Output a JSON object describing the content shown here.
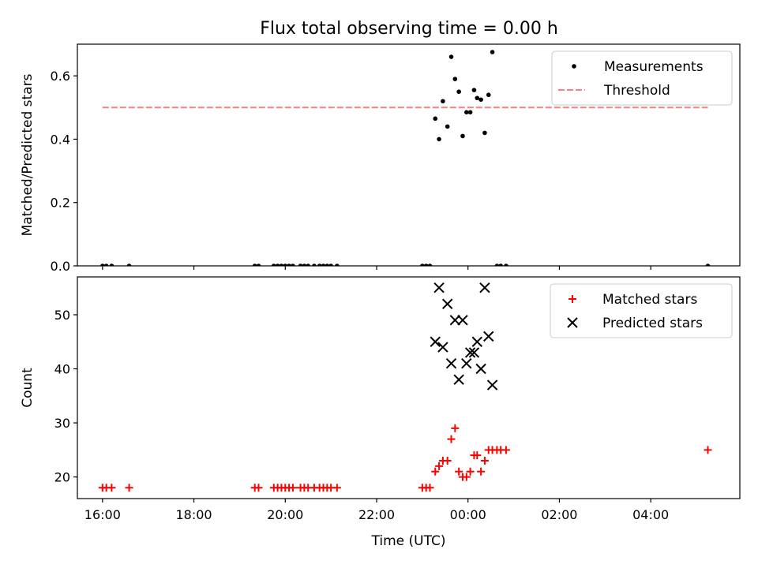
{
  "figure": {
    "title": "Flux total observing time = 0.00 h"
  },
  "chart_data": [
    {
      "type": "scatter",
      "panel": "top",
      "ylabel": "Matched/Predicted stars",
      "xlabel": "",
      "x_unit": "hours (UTC, continuing past midnight)",
      "xlim": [
        15.45,
        5.95
      ],
      "ylim": [
        0,
        0.7
      ],
      "yticks": [
        0.0,
        0.2,
        0.4,
        0.6
      ],
      "ytick_labels": [
        "0.0",
        "0.2",
        "0.4",
        "0.6"
      ],
      "legend": [
        "Measurements",
        "Threshold"
      ],
      "legend_position": "upper right",
      "threshold": {
        "name": "Threshold",
        "value": 0.5,
        "x_start": "16:00",
        "x_end": "05:15",
        "color": "#ff7f7f",
        "style": "dashed"
      },
      "series": [
        {
          "name": "Measurements",
          "marker": "dot",
          "color": "#000000",
          "points": [
            [
              "16:00",
              0
            ],
            [
              "16:05",
              0
            ],
            [
              "16:12",
              0
            ],
            [
              "16:35",
              0
            ],
            [
              "19:20",
              0
            ],
            [
              "19:25",
              0
            ],
            [
              "19:45",
              0
            ],
            [
              "19:50",
              0
            ],
            [
              "19:55",
              0
            ],
            [
              "20:00",
              0
            ],
            [
              "20:05",
              0
            ],
            [
              "20:10",
              0
            ],
            [
              "20:20",
              0
            ],
            [
              "20:25",
              0
            ],
            [
              "20:30",
              0
            ],
            [
              "20:38",
              0
            ],
            [
              "20:45",
              0
            ],
            [
              "20:50",
              0
            ],
            [
              "20:55",
              0
            ],
            [
              "21:00",
              0
            ],
            [
              "21:08",
              0
            ],
            [
              "23:00",
              0
            ],
            [
              "23:05",
              0
            ],
            [
              "23:10",
              0
            ],
            [
              "23:17",
              0.465
            ],
            [
              "23:22",
              0.4
            ],
            [
              "23:27",
              0.52
            ],
            [
              "23:33",
              0.44
            ],
            [
              "23:38",
              0.66
            ],
            [
              "23:43",
              0.59
            ],
            [
              "23:48",
              0.55
            ],
            [
              "23:53",
              0.41
            ],
            [
              "23:58",
              0.485
            ],
            [
              "00:03",
              0.485
            ],
            [
              "00:08",
              0.555
            ],
            [
              "00:12",
              0.53
            ],
            [
              "00:17",
              0.525
            ],
            [
              "00:22",
              0.42
            ],
            [
              "00:27",
              0.54
            ],
            [
              "00:32",
              0.675
            ],
            [
              "00:38",
              0
            ],
            [
              "00:43",
              0
            ],
            [
              "00:50",
              0
            ],
            [
              "05:15",
              0
            ]
          ]
        }
      ]
    },
    {
      "type": "scatter",
      "panel": "bottom",
      "ylabel": "Count",
      "xlabel": "Time (UTC)",
      "xlim": [
        15.45,
        5.95
      ],
      "ylim": [
        16,
        57
      ],
      "yticks": [
        20,
        30,
        40,
        50
      ],
      "ytick_labels": [
        "20",
        "30",
        "40",
        "50"
      ],
      "xticks": [
        16,
        18,
        20,
        22,
        24,
        26,
        28
      ],
      "xtick_labels": [
        "16:00",
        "18:00",
        "20:00",
        "22:00",
        "00:00",
        "02:00",
        "04:00"
      ],
      "legend": [
        "Matched stars",
        "Predicted stars"
      ],
      "legend_position": "upper right",
      "series": [
        {
          "name": "Matched stars",
          "marker": "plus",
          "color": "#ff0000",
          "points": [
            [
              "16:00",
              18
            ],
            [
              "16:05",
              18
            ],
            [
              "16:12",
              18
            ],
            [
              "16:35",
              18
            ],
            [
              "19:20",
              18
            ],
            [
              "19:25",
              18
            ],
            [
              "19:45",
              18
            ],
            [
              "19:50",
              18
            ],
            [
              "19:55",
              18
            ],
            [
              "20:00",
              18
            ],
            [
              "20:05",
              18
            ],
            [
              "20:10",
              18
            ],
            [
              "20:20",
              18
            ],
            [
              "20:25",
              18
            ],
            [
              "20:30",
              18
            ],
            [
              "20:38",
              18
            ],
            [
              "20:45",
              18
            ],
            [
              "20:50",
              18
            ],
            [
              "20:55",
              18
            ],
            [
              "21:00",
              18
            ],
            [
              "21:08",
              18
            ],
            [
              "23:00",
              18
            ],
            [
              "23:05",
              18
            ],
            [
              "23:10",
              18
            ],
            [
              "23:17",
              21
            ],
            [
              "23:22",
              22
            ],
            [
              "23:27",
              23
            ],
            [
              "23:33",
              23
            ],
            [
              "23:38",
              27
            ],
            [
              "23:43",
              29
            ],
            [
              "23:48",
              21
            ],
            [
              "23:53",
              20
            ],
            [
              "23:58",
              20
            ],
            [
              "00:03",
              21
            ],
            [
              "00:08",
              24
            ],
            [
              "00:12",
              24
            ],
            [
              "00:17",
              21
            ],
            [
              "00:22",
              23
            ],
            [
              "00:27",
              25
            ],
            [
              "00:32",
              25
            ],
            [
              "00:38",
              25
            ],
            [
              "00:43",
              25
            ],
            [
              "00:50",
              25
            ],
            [
              "05:15",
              25
            ]
          ]
        },
        {
          "name": "Predicted stars",
          "marker": "x",
          "color": "#000000",
          "points": [
            [
              "23:17",
              45
            ],
            [
              "23:22",
              55
            ],
            [
              "23:27",
              44
            ],
            [
              "23:33",
              52
            ],
            [
              "23:38",
              41
            ],
            [
              "23:43",
              49
            ],
            [
              "23:48",
              38
            ],
            [
              "23:53",
              49
            ],
            [
              "23:58",
              41
            ],
            [
              "00:03",
              43
            ],
            [
              "00:08",
              43
            ],
            [
              "00:12",
              45
            ],
            [
              "00:17",
              40
            ],
            [
              "00:22",
              55
            ],
            [
              "00:27",
              46
            ],
            [
              "00:32",
              37
            ]
          ]
        }
      ]
    }
  ]
}
